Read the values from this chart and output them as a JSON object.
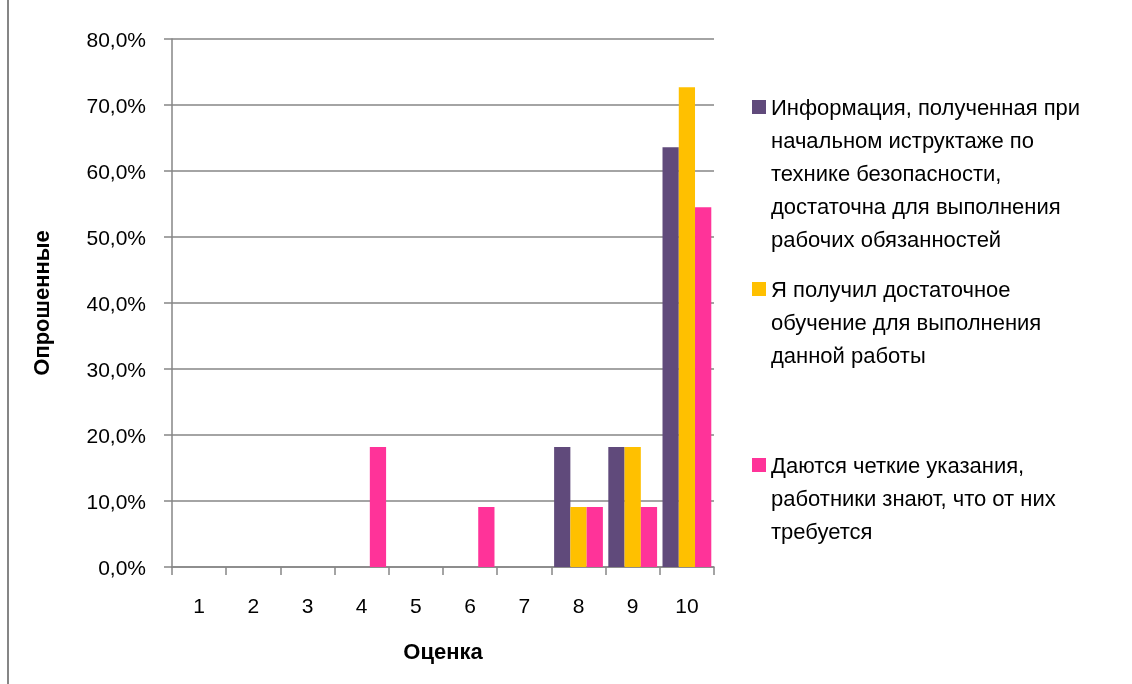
{
  "chart_data": {
    "type": "bar",
    "xlabel": "Оценка",
    "ylabel": "Опрошенные",
    "categories": [
      "1",
      "2",
      "3",
      "4",
      "5",
      "6",
      "7",
      "8",
      "9",
      "10"
    ],
    "series": [
      {
        "name": "Информация, полученная при начальном иструктаже по технике безопасности, достаточна для выполнения рабочих обязанностей",
        "color": "#604a7b",
        "values": [
          0,
          0,
          0,
          0,
          0,
          0,
          0,
          18.2,
          18.2,
          63.6
        ]
      },
      {
        "name": "Я получил достаточное обучение для выполнения данной работы",
        "color": "#ffc000",
        "values": [
          0,
          0,
          0,
          0,
          0,
          0,
          0,
          9.1,
          18.2,
          72.7
        ]
      },
      {
        "name": "Даются четкие указания, работники знают, что от них требуется",
        "color": "#ff3399",
        "values": [
          0,
          0,
          0,
          18.2,
          0,
          9.1,
          0,
          9.1,
          9.1,
          54.5
        ]
      }
    ],
    "ylim": [
      0,
      80
    ],
    "yticks": [
      {
        "value": 0,
        "label": "0,0%"
      },
      {
        "value": 10,
        "label": "10,0%"
      },
      {
        "value": 20,
        "label": "20,0%"
      },
      {
        "value": 30,
        "label": "30,0%"
      },
      {
        "value": 40,
        "label": "40,0%"
      },
      {
        "value": 50,
        "label": "50,0%"
      },
      {
        "value": 60,
        "label": "60,0%"
      },
      {
        "value": 70,
        "label": "70,0%"
      },
      {
        "value": 80,
        "label": "80,0%"
      }
    ],
    "grid": "y",
    "legend": "right"
  }
}
